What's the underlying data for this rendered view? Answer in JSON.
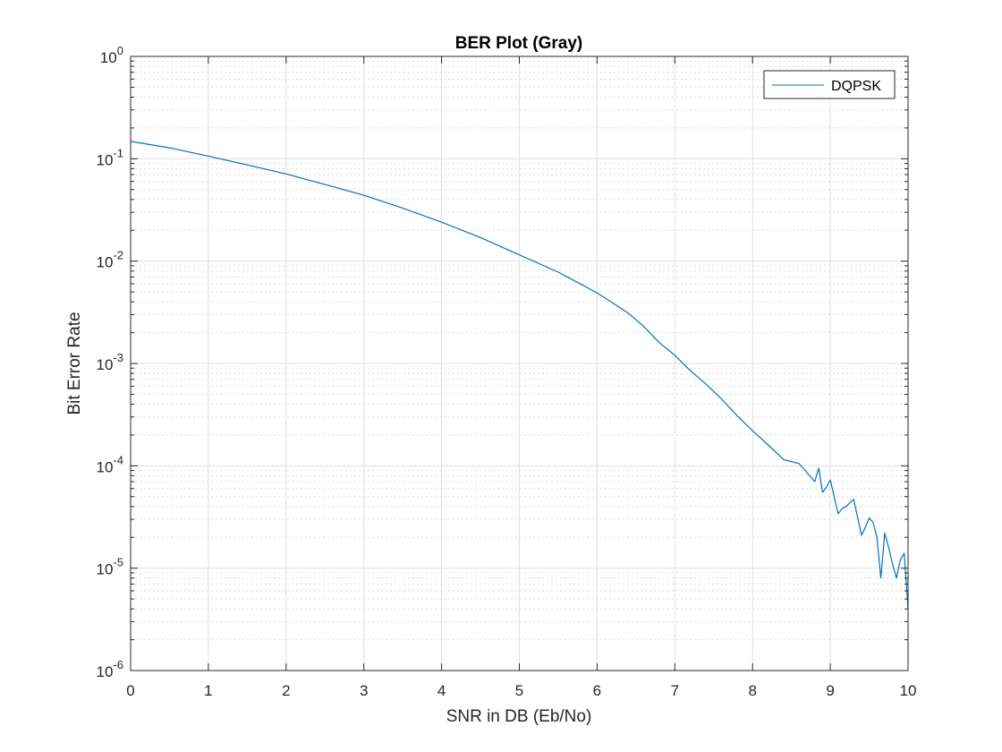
{
  "chart_data": {
    "type": "line",
    "title": "BER Plot (Gray)",
    "xlabel": "SNR in DB (Eb/No)",
    "ylabel": "Bit Error Rate",
    "xlim": [
      0,
      10
    ],
    "ylim": [
      1e-06,
      1
    ],
    "yscale": "log",
    "grid": true,
    "minor_grid": true,
    "legend_location": "top-right",
    "x_ticks": [
      0,
      1,
      2,
      3,
      4,
      5,
      6,
      7,
      8,
      9,
      10
    ],
    "y_ticks": [
      {
        "value": 1e-06,
        "base": "10",
        "exp": "-6"
      },
      {
        "value": 1e-05,
        "base": "10",
        "exp": "-5"
      },
      {
        "value": 0.0001,
        "base": "10",
        "exp": "-4"
      },
      {
        "value": 0.001,
        "base": "10",
        "exp": "-3"
      },
      {
        "value": 0.01,
        "base": "10",
        "exp": "-2"
      },
      {
        "value": 0.1,
        "base": "10",
        "exp": "-1"
      },
      {
        "value": 1,
        "base": "10",
        "exp": "0"
      }
    ],
    "series": [
      {
        "name": "DQPSK",
        "color": "#0072BD",
        "x": [
          0,
          0.5,
          1,
          1.5,
          2,
          2.5,
          3,
          3.5,
          4,
          4.5,
          5,
          5.5,
          6,
          6.2,
          6.4,
          6.6,
          6.8,
          7,
          7.2,
          7.4,
          7.6,
          7.8,
          8,
          8.2,
          8.4,
          8.6,
          8.8,
          8.85,
          8.9,
          8.95,
          9.0,
          9.05,
          9.1,
          9.15,
          9.2,
          9.3,
          9.4,
          9.45,
          9.5,
          9.55,
          9.6,
          9.65,
          9.7,
          9.75,
          9.8,
          9.85,
          9.9,
          9.95,
          10.0
        ],
        "y": [
          0.148,
          0.128,
          0.106,
          0.087,
          0.071,
          0.056,
          0.044,
          0.033,
          0.024,
          0.017,
          0.0115,
          0.0078,
          0.0049,
          0.0039,
          0.0031,
          0.0023,
          0.0016,
          0.0012,
          0.00085,
          0.00063,
          0.00045,
          0.00031,
          0.00022,
          0.00016,
          0.000115,
          0.000105,
          7e-05,
          9.5e-05,
          5.5e-05,
          6.2e-05,
          7.3e-05,
          5e-05,
          3.4e-05,
          3.8e-05,
          4e-05,
          4.7e-05,
          2.1e-05,
          2.5e-05,
          3.1e-05,
          2.8e-05,
          2e-05,
          8e-06,
          2.2e-05,
          1.6e-05,
          1.1e-05,
          8e-06,
          1.2e-05,
          1.4e-05,
          4e-06
        ]
      }
    ]
  }
}
